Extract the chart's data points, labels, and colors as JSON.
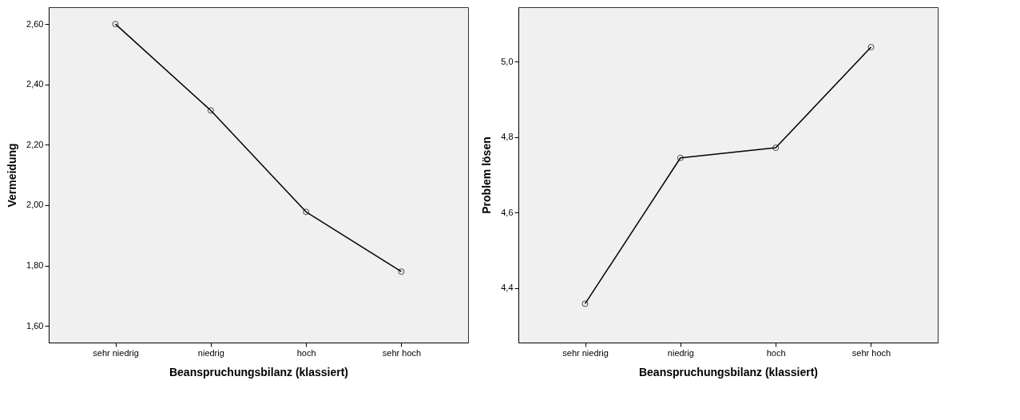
{
  "chart_data": [
    {
      "type": "line",
      "categories": [
        "sehr niedrig",
        "niedrig",
        "hoch",
        "sehr hoch"
      ],
      "xlabel": "Beanspruchungsbilanz (klassiert)",
      "ylabel": "Vermeidung",
      "ylim": [
        1.545,
        2.656
      ],
      "yticks": [
        {
          "value": 1.6,
          "label": "1,60"
        },
        {
          "value": 1.8,
          "label": "1,80"
        },
        {
          "value": 2.0,
          "label": "2,00"
        },
        {
          "value": 2.2,
          "label": "2,20"
        },
        {
          "value": 2.4,
          "label": "2,40"
        },
        {
          "value": 2.6,
          "label": "2,60"
        }
      ],
      "grid": false,
      "marker": "circle",
      "line_style": "solid",
      "series": [
        {
          "color": "#000000",
          "values": [
            2.6,
            2.314,
            1.978,
            1.78
          ]
        }
      ]
    },
    {
      "type": "line",
      "categories": [
        "sehr niedrig",
        "niedrig",
        "hoch",
        "sehr hoch"
      ],
      "xlabel": "Beanspruchungsbilanz (klassiert)",
      "ylabel": "Problem lösen",
      "ylim": [
        4.255,
        5.145
      ],
      "yticks": [
        {
          "value": 4.4,
          "label": "4,4"
        },
        {
          "value": 4.6,
          "label": "4,6"
        },
        {
          "value": 4.8,
          "label": "4,8"
        },
        {
          "value": 5.0,
          "label": "5,0"
        }
      ],
      "grid": false,
      "marker": "circle",
      "line_style": "solid",
      "series": [
        {
          "color": "#000000",
          "values": [
            4.358,
            4.745,
            4.772,
            5.039
          ]
        }
      ]
    }
  ]
}
